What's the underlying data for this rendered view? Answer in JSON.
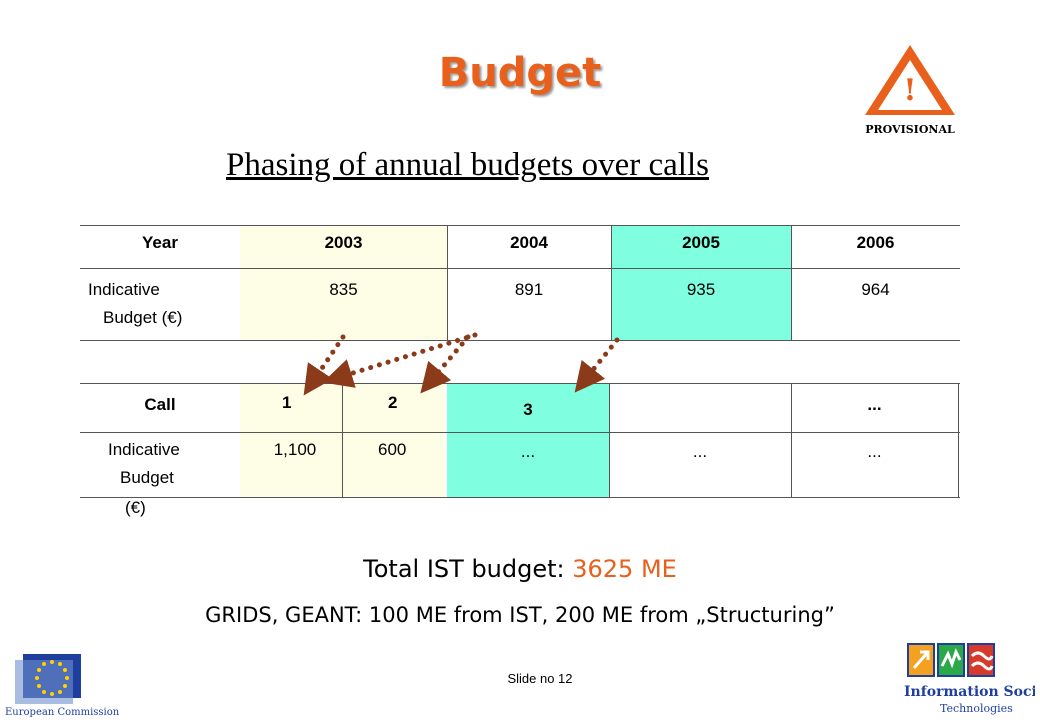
{
  "slide": {
    "title": "Budget",
    "subtitle": "Phasing of annual budgets over calls",
    "warning_label": "PROVISIONAL",
    "warning_mark": "!",
    "slide_number": "Slide no 12"
  },
  "years_table": {
    "header_label": "Year",
    "years": [
      "2003",
      "2004",
      "2005",
      "2006"
    ],
    "row_label_line1": "Indicative",
    "row_label_line2": "Budget (€)",
    "values": [
      "835",
      "891",
      "935",
      "964"
    ]
  },
  "calls_table": {
    "header_label": "Call",
    "calls": [
      "1",
      "2",
      "3",
      "",
      "..."
    ],
    "row_label_line1": "Indicative",
    "row_label_line2": "Budget",
    "row_label_line3": "(€)",
    "values": [
      "1,100",
      "600",
      "...",
      "...",
      "..."
    ]
  },
  "totals": {
    "total_prefix": "Total IST budget: ",
    "total_value": "3625 ME",
    "grids_line": "GRIDS, GEANT: 100 ME from IST, 200 ME from „Structuring”"
  },
  "logos": {
    "left_caption": "European Commission",
    "right_line1": "Information Society",
    "right_line2": "Technologies"
  },
  "colors": {
    "title": "#e8601c",
    "highlight_light": "#fefde6",
    "highlight_cyan": "#7fffe0",
    "arrow": "#8b3a1a"
  }
}
